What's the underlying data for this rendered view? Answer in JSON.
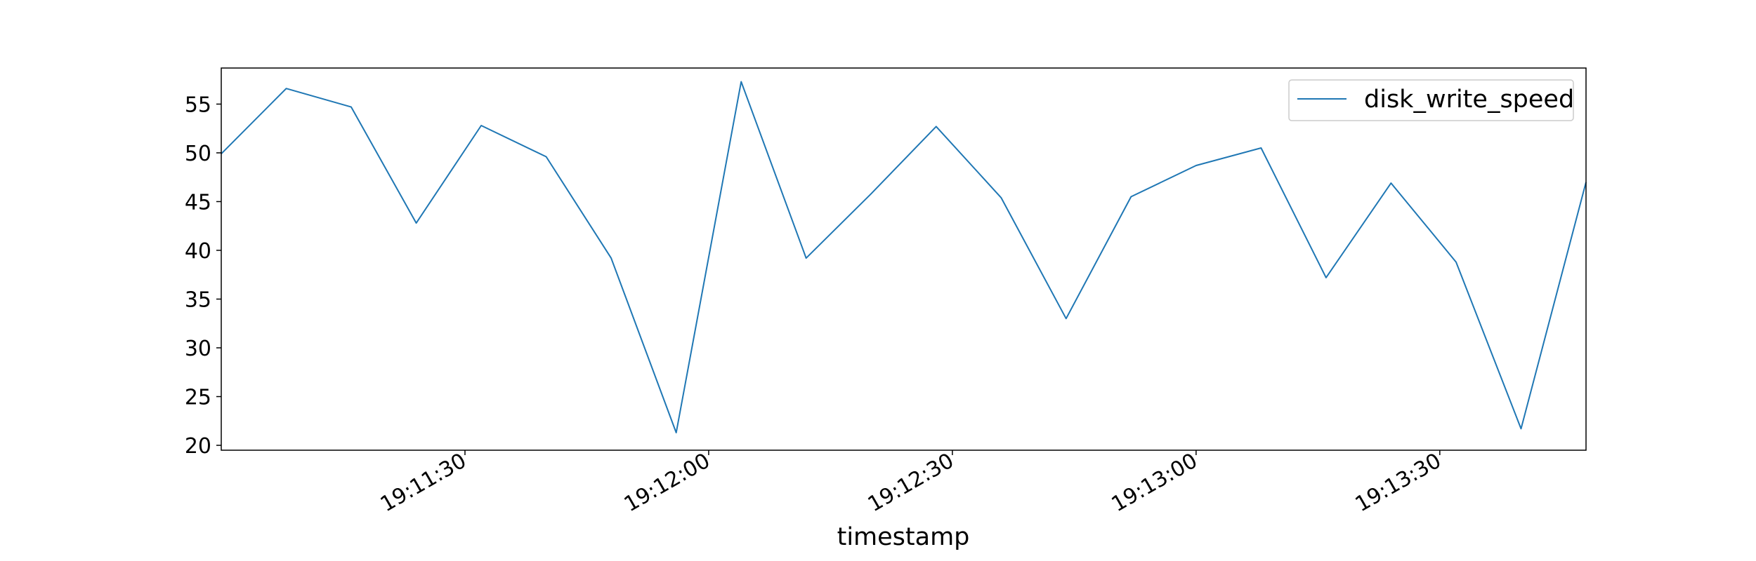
{
  "chart_data": {
    "type": "line",
    "xlabel": "timestamp",
    "ylabel": "",
    "x": [
      "19:11:00",
      "19:11:08",
      "19:11:16",
      "19:11:24",
      "19:11:32",
      "19:11:40",
      "19:11:48",
      "19:11:56",
      "19:12:04",
      "19:12:12",
      "19:12:20",
      "19:12:28",
      "19:12:36",
      "19:12:44",
      "19:12:52",
      "19:13:00",
      "19:13:08",
      "19:13:16",
      "19:13:24",
      "19:13:32",
      "19:13:40",
      "19:13:48"
    ],
    "series": [
      {
        "name": "disk_write_speed",
        "color": "#1f77b4",
        "values": [
          49.9,
          56.6,
          54.7,
          42.8,
          52.8,
          49.6,
          39.2,
          21.3,
          57.3,
          39.2,
          45.8,
          52.7,
          45.4,
          33.0,
          45.5,
          48.7,
          50.5,
          37.2,
          46.9,
          38.8,
          21.7,
          47.0
        ]
      }
    ],
    "xlim": [
      "19:11:00",
      "19:13:48"
    ],
    "ylim": [
      19.5,
      58.7
    ],
    "yticks": [
      20,
      25,
      30,
      35,
      40,
      45,
      50,
      55
    ],
    "xticks": [
      "19:11:30",
      "19:12:00",
      "19:12:30",
      "19:13:00",
      "19:13:30"
    ],
    "grid": false,
    "legend_position": "top-right"
  }
}
